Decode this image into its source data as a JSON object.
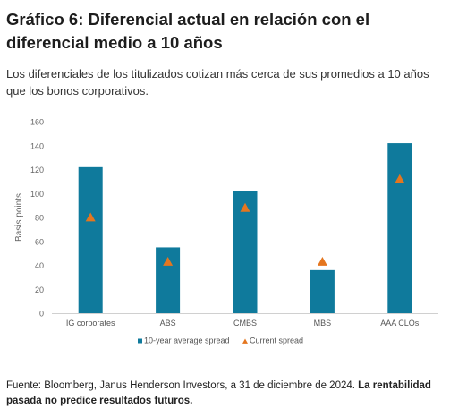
{
  "title": "Gráfico 6: Diferencial actual en relación con el diferencial medio a 10 años",
  "subtitle": "Los diferenciales de los titulizados cotizan más cerca de sus promedios a 10 años que los bonos corporativos.",
  "chart_data": {
    "type": "bar",
    "categories": [
      "IG corporates",
      "ABS",
      "CMBS",
      "MBS",
      "AAA CLOs"
    ],
    "series": [
      {
        "name": "10-year average spread",
        "type": "bar",
        "color": "#0f7a9c",
        "values": [
          122,
          55,
          102,
          36,
          142
        ]
      },
      {
        "name": "Current spread",
        "type": "marker",
        "marker": "triangle",
        "color": "#e4761f",
        "values": [
          80,
          43,
          88,
          43,
          112
        ]
      }
    ],
    "xlabel": "",
    "ylabel": "Basis points",
    "ylim": [
      0,
      160
    ],
    "yticks": [
      0,
      20,
      40,
      60,
      80,
      100,
      120,
      140,
      160
    ],
    "grid": false,
    "legend_position": "bottom"
  },
  "source": {
    "text": "Fuente: Bloomberg, Janus Henderson Investors, a 31 de diciembre de 2024. ",
    "bold": "La rentabilidad pasada no predice resultados futuros."
  }
}
